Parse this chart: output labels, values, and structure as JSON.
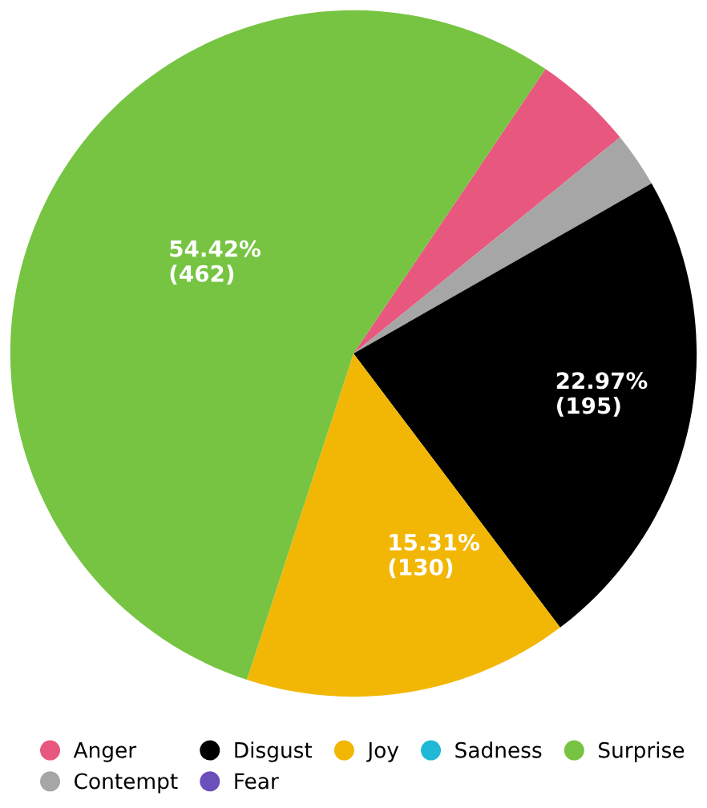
{
  "chart_data": {
    "type": "pie",
    "categories": [
      "Anger",
      "Contempt",
      "Disgust",
      "Fear",
      "Joy",
      "Sadness",
      "Surprise"
    ],
    "values": [
      40,
      22,
      195,
      0,
      130,
      0,
      462
    ],
    "colors": [
      "#e8577e",
      "#a6a6a6",
      "#000000",
      "#6b4fbb",
      "#f2b705",
      "#1fb8d6",
      "#76c442"
    ],
    "value_labels": [
      null,
      null,
      "22.97%\n(195)",
      null,
      "15.31%\n(130)",
      null,
      "54.42%\n(462)"
    ],
    "legend": "bottom"
  }
}
